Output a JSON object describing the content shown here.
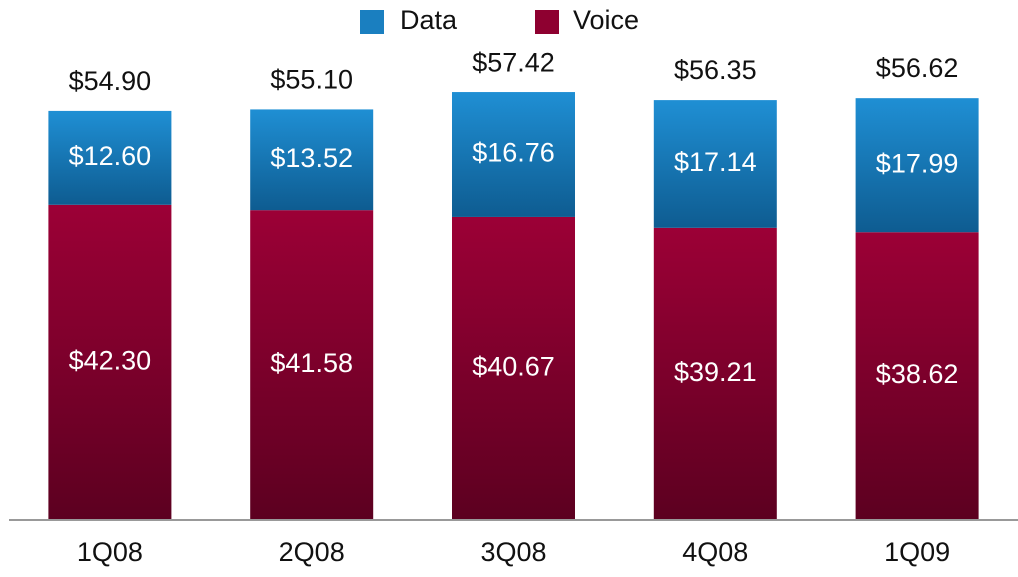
{
  "chart_data": {
    "type": "stacked_bar",
    "categories": [
      "1Q08",
      "2Q08",
      "3Q08",
      "4Q08",
      "1Q09"
    ],
    "series": [
      {
        "name": "Voice",
        "color": "#8e0030",
        "values": [
          42.3,
          41.58,
          40.67,
          39.21,
          38.62
        ],
        "value_labels": [
          "$42.30",
          "$41.58",
          "$40.67",
          "$39.21",
          "$38.62"
        ]
      },
      {
        "name": "Data",
        "color": "#1a7fc0",
        "values": [
          12.6,
          13.52,
          16.76,
          17.14,
          17.99
        ],
        "value_labels": [
          "$12.60",
          "$13.52",
          "$16.76",
          "$17.14",
          "$17.99"
        ]
      }
    ],
    "totals": [
      54.9,
      55.1,
      57.42,
      56.35,
      56.62
    ],
    "total_labels": [
      "$54.90",
      "$55.10",
      "$57.42",
      "$56.35",
      "$56.62"
    ],
    "ylim": [
      0,
      62
    ],
    "legend": "top"
  }
}
